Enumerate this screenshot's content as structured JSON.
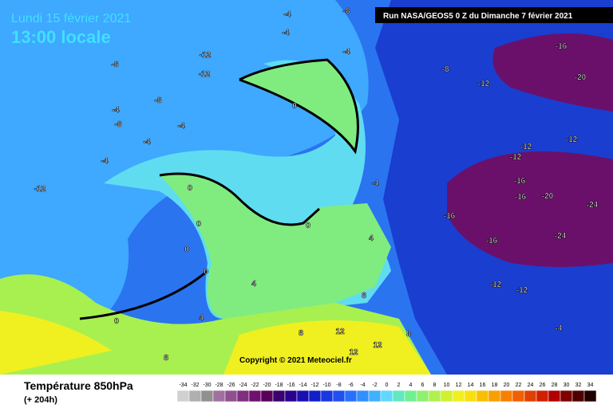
{
  "header": {
    "date": "Lundi 15 février 2021",
    "time": "13:00 locale",
    "run": "Run NASA/GEOS5 0 Z du Dimanche 7 février 2021"
  },
  "copyright": "Copyright © 2021 Meteociel.fr",
  "legend": {
    "title": "Température 850hPa",
    "subtitle": "(+ 204h)",
    "scale": [
      -34,
      -32,
      -30,
      -28,
      -26,
      -24,
      -22,
      -20,
      -18,
      -16,
      -14,
      -12,
      -10,
      -8,
      -6,
      -4,
      -2,
      0,
      2,
      4,
      6,
      8,
      10,
      12,
      14,
      16,
      18,
      20,
      22,
      24,
      26,
      28,
      30,
      32,
      34
    ],
    "colors": [
      "#d0d0d0",
      "#b0b0b0",
      "#909090",
      "#a070a0",
      "#905090",
      "#803080",
      "#701070",
      "#5a005a",
      "#3a0070",
      "#2a0090",
      "#1a10b0",
      "#1020c8",
      "#1838e0",
      "#2050f0",
      "#2870ff",
      "#3090ff",
      "#40b0ff",
      "#60d8ff",
      "#60e8c0",
      "#70f090",
      "#90f070",
      "#b0f050",
      "#d0f030",
      "#f0f020",
      "#f8e010",
      "#f8c000",
      "#f8a000",
      "#f88000",
      "#f06000",
      "#e04000",
      "#d02000",
      "#b00000",
      "#800000",
      "#500000",
      "#200000"
    ]
  },
  "contour_labels": [
    "-16",
    "-20",
    "-12",
    "-8",
    "-12",
    "-12",
    "-12",
    "-16",
    "-16",
    "-20",
    "-24",
    "-24",
    "-16",
    "-16",
    "-12",
    "-12",
    "-8",
    "-4",
    "-4",
    "-4",
    "-12",
    "-12",
    "-8",
    "-8",
    "-4",
    "-8",
    "-4",
    "-4",
    "-4",
    "-12",
    "0",
    "0",
    "0",
    "0",
    "0",
    "0",
    "0",
    "4",
    "4",
    "8",
    "8",
    "8",
    "12",
    "12",
    "12",
    "8",
    "-4",
    "4",
    "-4"
  ]
}
